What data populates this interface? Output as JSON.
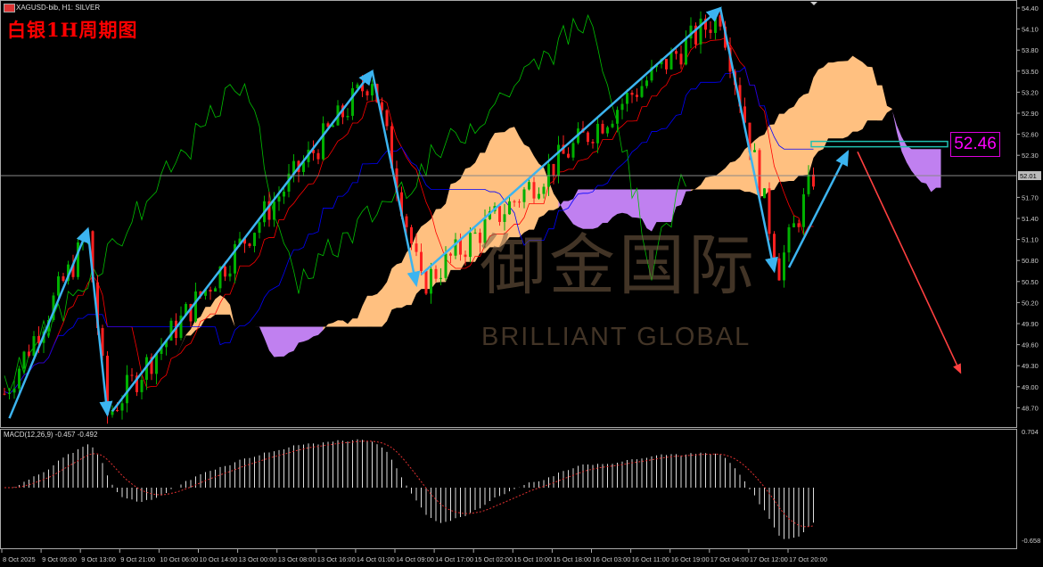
{
  "header": {
    "symbol_line": "XAGUSD-bib, H1: SILVER",
    "title": "白银1H周期图",
    "flag_icon": "chart-flag-icon"
  },
  "watermark": {
    "logo_cn": "御金国际",
    "logo_en": "BRILLIANT GLOBAL"
  },
  "macd": {
    "label": "MACD(12,26,9) -0.457 -0.492",
    "axis_top": "0.704",
    "axis_bottom": "-0.658"
  },
  "price_label": "52.46",
  "colors": {
    "bull": "#00b000",
    "bear": "#ff2020",
    "cloud_up": "#ffc080",
    "cloud_down": "#c080f0",
    "tenkan": "#ff0000",
    "kijun": "#0000ff",
    "chikou": "#00c000",
    "arrow_blue": "#3cb4f0",
    "arrow_red": "#ff4040",
    "level_box": "#20c0b0"
  },
  "chart_data": {
    "type": "candlestick",
    "symbol": "XAGUSD-bib",
    "timeframe": "H1",
    "indicators": [
      "Ichimoku",
      "MACD(12,26,9)"
    ],
    "current_price": "52.01",
    "y_ticks": [
      "54.40",
      "54.10",
      "53.80",
      "53.50",
      "53.20",
      "52.90",
      "52.60",
      "52.30",
      "51.70",
      "51.40",
      "51.10",
      "50.80",
      "50.50",
      "50.20",
      "49.90",
      "49.60",
      "49.30",
      "49.00",
      "48.70"
    ],
    "ylim": [
      48.55,
      54.45
    ],
    "x_ticks": [
      "8 Oct 2025",
      "9 Oct 05:00",
      "9 Oct 13:00",
      "9 Oct 21:00",
      "10 Oct 06:00",
      "10 Oct 14:00",
      "13 Oct 00:00",
      "13 Oct 08:00",
      "13 Oct 16:00",
      "14 Oct 01:00",
      "14 Oct 09:00",
      "14 Oct 17:00",
      "15 Oct 02:00",
      "15 Oct 10:00",
      "15 Oct 18:00",
      "16 Oct 03:00",
      "16 Oct 11:00",
      "16 Oct 19:00",
      "17 Oct 04:00",
      "17 Oct 12:00",
      "17 Oct 20:00"
    ],
    "price_path": [
      [
        0,
        48.9
      ],
      [
        17,
        51.15
      ],
      [
        21,
        48.6
      ],
      [
        75,
        53.43
      ],
      [
        85,
        50.45
      ],
      [
        146,
        54.32
      ],
      [
        158,
        50.7
      ],
      [
        165,
        52.0
      ]
    ],
    "resistance_level": 52.46,
    "arrows_blue": [
      [
        [
          1,
          48.55
        ],
        [
          17,
          51.25
        ]
      ],
      [
        [
          17,
          51.25
        ],
        [
          21,
          48.6
        ]
      ],
      [
        [
          22,
          48.65
        ],
        [
          75,
          53.5
        ]
      ],
      [
        [
          75,
          53.5
        ],
        [
          84,
          50.45
        ]
      ],
      [
        [
          85,
          50.6
        ],
        [
          146,
          54.4
        ]
      ],
      [
        [
          146,
          54.4
        ],
        [
          157,
          50.65
        ]
      ],
      [
        [
          160,
          50.7
        ],
        [
          172,
          52.35
        ]
      ]
    ],
    "arrow_red": [
      [
        174,
        52.35
      ],
      [
        195,
        49.2
      ]
    ]
  }
}
